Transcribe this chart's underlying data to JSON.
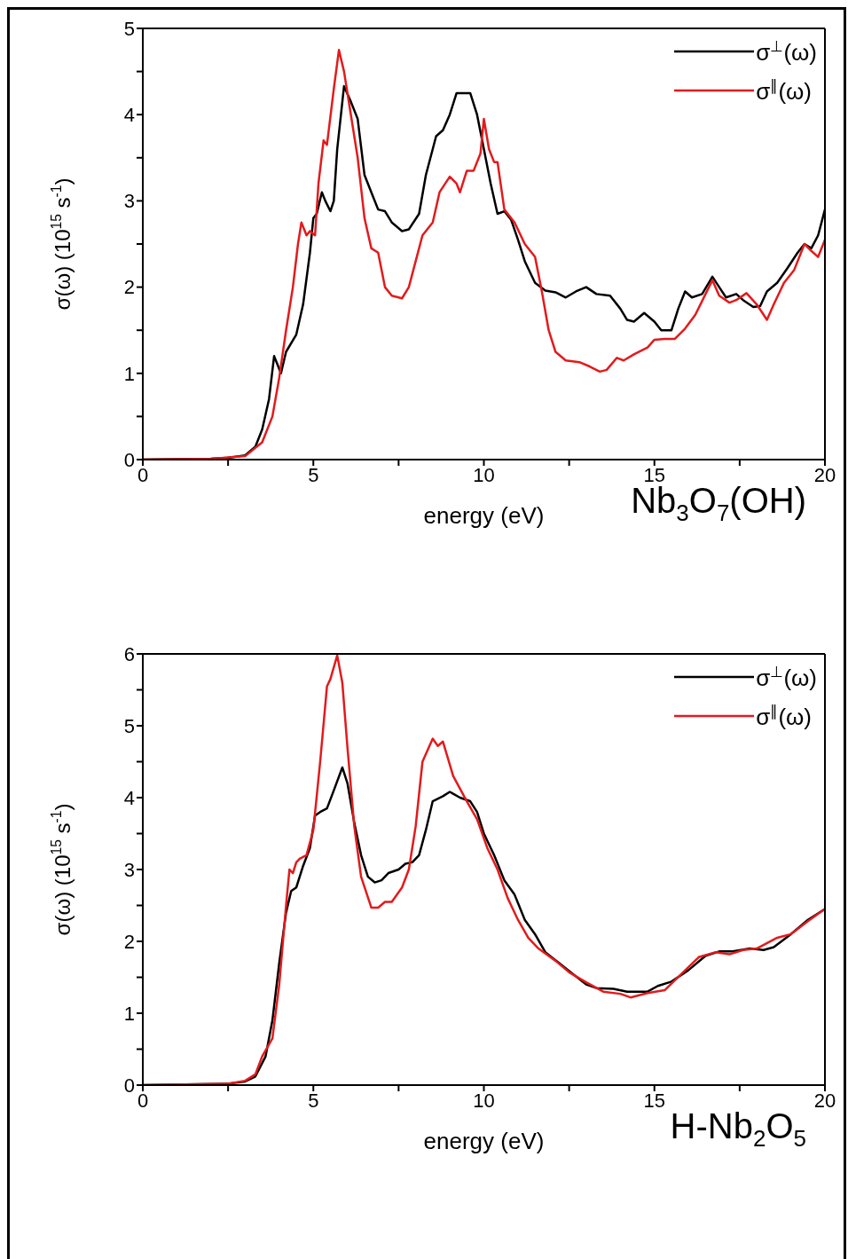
{
  "chart_data": [
    {
      "type": "line",
      "xlabel": "energy (eV)",
      "ylabel": "σ(ω) (10$^{15}$ s$^{-1}$)",
      "annotations": [
        "Nb$_{3}$O$_{7}$(OH)"
      ],
      "xlim": [
        0,
        20
      ],
      "xticks": [
        0,
        {
          "value": 2.5,
          "label": null
        },
        5,
        {
          "value": 7.5,
          "label": null
        },
        10,
        {
          "value": 12.5,
          "label": null
        },
        15,
        {
          "value": 17.5,
          "label": null
        },
        20
      ],
      "ylim": [
        0,
        5
      ],
      "yticks": [
        0,
        {
          "value": 0.5,
          "label": null
        },
        1,
        {
          "value": 1.5,
          "label": null
        },
        2,
        {
          "value": 2.5,
          "label": null
        },
        3,
        {
          "value": 3.5,
          "label": null
        },
        4,
        {
          "value": 4.5,
          "label": null
        },
        5
      ],
      "legend": "top right",
      "line_style": "solid",
      "series": [
        {
          "name": "σ$^{⊥}$(ω)",
          "color": "#000000",
          "x": [
            0,
            2,
            2.5,
            3,
            3.3,
            3.5,
            3.7,
            3.85,
            3.95,
            4.05,
            4.2,
            4.5,
            4.7,
            4.9,
            5.0,
            5.1,
            5.25,
            5.35,
            5.5,
            5.6,
            5.7,
            5.9,
            6.1,
            6.3,
            6.5,
            6.7,
            6.9,
            7.1,
            7.3,
            7.6,
            7.8,
            8.1,
            8.3,
            8.6,
            8.8,
            9.0,
            9.2,
            9.4,
            9.6,
            9.8,
            10.0,
            10.2,
            10.4,
            10.6,
            10.8,
            11.0,
            11.2,
            11.5,
            11.8,
            12.1,
            12.4,
            12.7,
            13.0,
            13.3,
            13.7,
            14.0,
            14.2,
            14.4,
            14.7,
            15.0,
            15.2,
            15.5,
            15.7,
            15.9,
            16.1,
            16.4,
            16.7,
            16.9,
            17.1,
            17.4,
            17.6,
            17.9,
            18.1,
            18.3,
            18.6,
            18.9,
            19.2,
            19.4,
            19.6,
            19.8,
            20
          ],
          "values": [
            0,
            0.01,
            0.02,
            0.05,
            0.15,
            0.35,
            0.7,
            1.2,
            1.1,
            1.0,
            1.25,
            1.45,
            1.8,
            2.4,
            2.8,
            2.85,
            3.1,
            3.0,
            2.88,
            3.0,
            3.6,
            4.33,
            4.15,
            3.95,
            3.3,
            3.1,
            2.9,
            2.88,
            2.75,
            2.65,
            2.67,
            2.85,
            3.3,
            3.75,
            3.82,
            4.0,
            4.25,
            4.25,
            4.25,
            4.0,
            3.6,
            3.2,
            2.85,
            2.88,
            2.78,
            2.55,
            2.3,
            2.05,
            1.96,
            1.94,
            1.88,
            1.95,
            2.0,
            1.92,
            1.9,
            1.75,
            1.62,
            1.6,
            1.7,
            1.6,
            1.5,
            1.5,
            1.75,
            1.95,
            1.88,
            1.92,
            2.12,
            2.0,
            1.88,
            1.92,
            1.85,
            1.77,
            1.78,
            1.95,
            2.05,
            2.22,
            2.4,
            2.5,
            2.45,
            2.6,
            2.9
          ]
        },
        {
          "name": "σ$^{∥}$(ω)",
          "color": "#e31a1c",
          "x": [
            0,
            2,
            3,
            3.5,
            3.8,
            4.0,
            4.2,
            4.4,
            4.55,
            4.65,
            4.8,
            4.9,
            5.05,
            5.15,
            5.3,
            5.4,
            5.6,
            5.75,
            5.9,
            6.1,
            6.3,
            6.5,
            6.7,
            6.9,
            7.1,
            7.3,
            7.6,
            7.8,
            8.0,
            8.2,
            8.5,
            8.7,
            9.0,
            9.2,
            9.3,
            9.5,
            9.7,
            9.9,
            10.0,
            10.15,
            10.3,
            10.4,
            10.6,
            10.9,
            11.2,
            11.5,
            11.7,
            11.9,
            12.1,
            12.4,
            12.8,
            13.1,
            13.4,
            13.6,
            13.9,
            14.1,
            14.4,
            14.8,
            15.0,
            15.3,
            15.6,
            15.9,
            16.2,
            16.5,
            16.7,
            16.9,
            17.2,
            17.4,
            17.7,
            18.0,
            18.3,
            18.5,
            18.8,
            19.1,
            19.4,
            19.6,
            19.8,
            20
          ],
          "values": [
            0,
            0.01,
            0.04,
            0.2,
            0.5,
            0.95,
            1.5,
            2.0,
            2.5,
            2.75,
            2.6,
            2.65,
            2.6,
            3.2,
            3.7,
            3.65,
            4.3,
            4.75,
            4.5,
            4.0,
            3.5,
            2.8,
            2.45,
            2.4,
            2.0,
            1.9,
            1.87,
            2.0,
            2.3,
            2.6,
            2.75,
            3.1,
            3.28,
            3.2,
            3.1,
            3.35,
            3.35,
            3.55,
            3.95,
            3.6,
            3.45,
            3.45,
            2.9,
            2.75,
            2.5,
            2.35,
            1.95,
            1.5,
            1.25,
            1.15,
            1.13,
            1.08,
            1.02,
            1.04,
            1.18,
            1.15,
            1.22,
            1.3,
            1.39,
            1.4,
            1.4,
            1.52,
            1.68,
            1.92,
            2.08,
            1.9,
            1.82,
            1.85,
            1.93,
            1.8,
            1.62,
            1.8,
            2.05,
            2.2,
            2.5,
            2.42,
            2.35,
            2.55
          ]
        }
      ]
    },
    {
      "type": "line",
      "xlabel": "energy (eV)",
      "ylabel": "σ(ω) (10$^{15}$ s$^{-1}$)",
      "annotations": [
        "H-Nb$_{2}$O$_{5}$"
      ],
      "xlim": [
        0,
        20
      ],
      "xticks": [
        0,
        {
          "value": 2.5,
          "label": null
        },
        5,
        {
          "value": 7.5,
          "label": null
        },
        10,
        {
          "value": 12.5,
          "label": null
        },
        15,
        {
          "value": 17.5,
          "label": null
        },
        20
      ],
      "ylim": [
        0,
        6
      ],
      "yticks": [
        0,
        {
          "value": 0.5,
          "label": null
        },
        1,
        {
          "value": 1.5,
          "label": null
        },
        2,
        {
          "value": 2.5,
          "label": null
        },
        3,
        {
          "value": 3.5,
          "label": null
        },
        4,
        {
          "value": 4.5,
          "label": null
        },
        5,
        {
          "value": 5.5,
          "label": null
        },
        6
      ],
      "legend": "top right",
      "line_style": "solid",
      "series": [
        {
          "name": "σ$^{⊥}$(ω)",
          "color": "#000000",
          "x": [
            0,
            2.5,
            3,
            3.3,
            3.6,
            3.8,
            4.0,
            4.2,
            4.35,
            4.5,
            4.7,
            4.9,
            5.05,
            5.2,
            5.4,
            5.6,
            5.85,
            6.0,
            6.2,
            6.4,
            6.6,
            6.8,
            7.0,
            7.2,
            7.5,
            7.7,
            7.9,
            8.1,
            8.3,
            8.5,
            8.8,
            9.0,
            9.3,
            9.6,
            9.8,
            10.0,
            10.3,
            10.6,
            10.9,
            11.2,
            11.5,
            11.8,
            12.2,
            12.6,
            13.0,
            13.3,
            13.8,
            14.2,
            14.8,
            15.1,
            15.5,
            16.0,
            16.5,
            16.9,
            17.3,
            17.8,
            18.2,
            18.5,
            19.0,
            19.5,
            20
          ],
          "values": [
            0,
            0.02,
            0.05,
            0.12,
            0.4,
            0.9,
            1.7,
            2.4,
            2.7,
            2.75,
            3.05,
            3.3,
            3.75,
            3.8,
            3.85,
            4.1,
            4.42,
            4.2,
            3.65,
            3.2,
            2.9,
            2.82,
            2.85,
            2.95,
            3.0,
            3.08,
            3.1,
            3.2,
            3.55,
            3.95,
            4.02,
            4.08,
            4.0,
            3.95,
            3.8,
            3.5,
            3.2,
            2.85,
            2.65,
            2.3,
            2.1,
            1.85,
            1.7,
            1.55,
            1.4,
            1.35,
            1.34,
            1.3,
            1.3,
            1.38,
            1.44,
            1.6,
            1.8,
            1.86,
            1.86,
            1.9,
            1.88,
            1.92,
            2.1,
            2.3,
            2.45
          ]
        },
        {
          "name": "σ$^{∥}$(ω)",
          "color": "#e31a1c",
          "x": [
            0,
            2.5,
            3,
            3.3,
            3.5,
            3.8,
            4.0,
            4.2,
            4.3,
            4.4,
            4.5,
            4.6,
            4.8,
            5.0,
            5.2,
            5.4,
            5.5,
            5.7,
            5.85,
            6.0,
            6.2,
            6.4,
            6.7,
            6.9,
            7.1,
            7.3,
            7.6,
            7.8,
            8.0,
            8.2,
            8.5,
            8.65,
            8.8,
            9.1,
            9.5,
            9.8,
            10.1,
            10.4,
            10.7,
            11.0,
            11.3,
            11.6,
            12.1,
            12.5,
            13.0,
            13.5,
            14.0,
            14.3,
            14.8,
            15.3,
            15.8,
            16.3,
            16.8,
            17.2,
            17.6,
            18.0,
            18.6,
            19.0,
            19.5,
            20
          ],
          "values": [
            0,
            0.02,
            0.06,
            0.15,
            0.4,
            0.65,
            1.4,
            2.5,
            3.0,
            2.95,
            3.1,
            3.15,
            3.2,
            3.55,
            4.5,
            5.55,
            5.65,
            5.98,
            5.6,
            4.7,
            3.6,
            2.9,
            2.47,
            2.47,
            2.55,
            2.55,
            2.75,
            3.0,
            3.6,
            4.5,
            4.82,
            4.72,
            4.78,
            4.3,
            3.95,
            3.7,
            3.3,
            3.0,
            2.6,
            2.3,
            2.05,
            1.9,
            1.73,
            1.57,
            1.43,
            1.3,
            1.27,
            1.22,
            1.28,
            1.32,
            1.55,
            1.78,
            1.85,
            1.82,
            1.88,
            1.9,
            2.05,
            2.1,
            2.28,
            2.45
          ]
        }
      ]
    }
  ]
}
